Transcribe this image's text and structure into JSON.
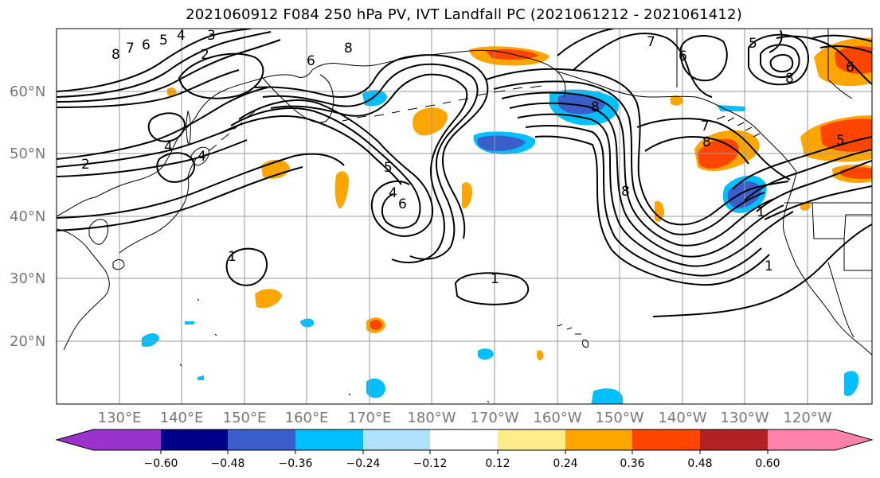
{
  "title": "2021060912 F084 250 hPa PV, IVT Landfall PC (2021061212 - 2021061412)",
  "lat_labels": [
    "60°N",
    "50°N",
    "40°N",
    "30°N",
    "20°N"
  ],
  "lon_labels": [
    "130°E",
    "140°E",
    "150°E",
    "160°E",
    "170°E",
    "180°W",
    "170°W",
    "160°W",
    "150°W",
    "140°W",
    "130°W",
    "120°W"
  ],
  "colorbar": {
    "ticks": [
      "−0.60",
      "−0.48",
      "−0.36",
      "−0.24",
      "−0.12",
      "0.12",
      "0.24",
      "0.36",
      "0.48",
      "0.60"
    ],
    "colors": [
      "#9933cc",
      "#00008b",
      "#3a5fcd",
      "#00bfff",
      "#b0e2ff",
      "#ffffff",
      "#ffec8b",
      "#ffa500",
      "#ff4500",
      "#b22222",
      "#ff82ab"
    ]
  },
  "contour_labels": [
    "8",
    "7",
    "6",
    "5",
    "4",
    "3",
    "2",
    "4",
    "4",
    "2",
    "6",
    "8",
    "5",
    "4",
    "6",
    "1",
    "1",
    "7",
    "8",
    "8",
    "6",
    "5",
    "8",
    "1",
    "1",
    "7",
    "6",
    "5",
    "8"
  ],
  "colors": {
    "positive_medium": "#ffa500",
    "positive_strong": "#ff4500",
    "negative_light": "#00bfff",
    "negative_strong": "#3a5fcd",
    "grid": "#999999",
    "contour": "#000000"
  }
}
